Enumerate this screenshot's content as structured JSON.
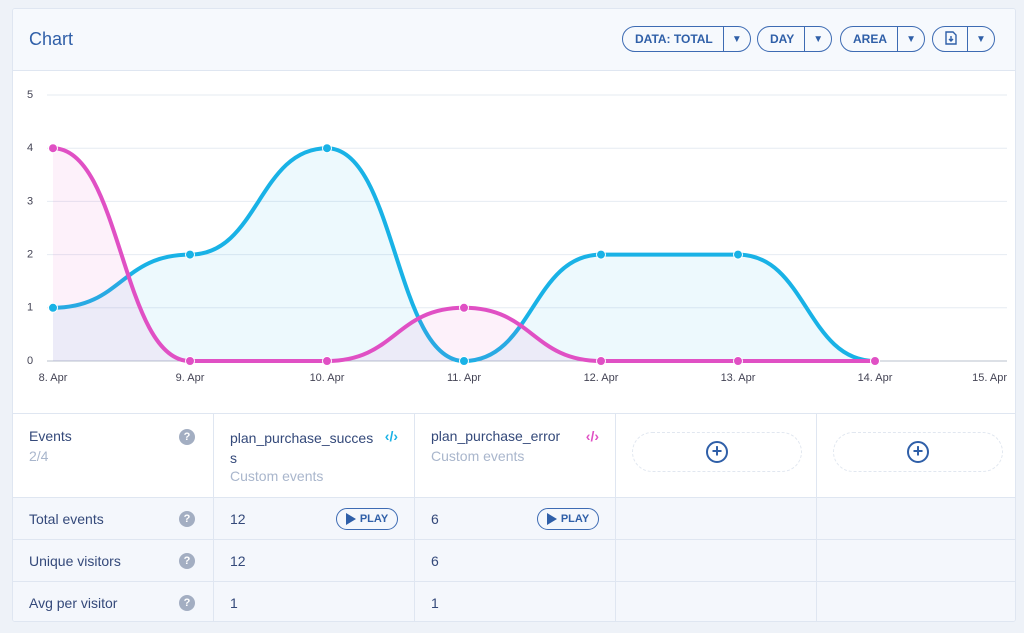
{
  "header": {
    "title": "Chart",
    "buttons": [
      "DATA: TOTAL",
      "DAY",
      "AREA"
    ]
  },
  "chart_data": {
    "type": "area",
    "categories": [
      "8. Apr",
      "9. Apr",
      "10. Apr",
      "11. Apr",
      "12. Apr",
      "13. Apr",
      "14. Apr",
      "15. Apr"
    ],
    "series": [
      {
        "name": "plan_purchase_success",
        "color": "#19b2e6",
        "values": [
          1,
          2,
          4,
          0,
          2,
          2,
          0,
          null
        ]
      },
      {
        "name": "plan_purchase_error",
        "color": "#e050c4",
        "values": [
          4,
          0,
          0,
          1,
          0,
          0,
          0,
          null
        ]
      }
    ],
    "ylim": [
      0,
      5
    ],
    "yticks": [
      0,
      1,
      2,
      3,
      4,
      5
    ],
    "grid": true
  },
  "table": {
    "header": {
      "label": "Events",
      "count": "2/4"
    },
    "columns": [
      {
        "name": "plan_purchase_success",
        "subtitle": "Custom events"
      },
      {
        "name": "plan_purchase_error",
        "subtitle": "Custom events"
      }
    ],
    "rows": [
      {
        "label": "Total events",
        "values": [
          12,
          6
        ],
        "buttons": [
          "PLAY",
          "PLAY"
        ]
      },
      {
        "label": "Unique visitors",
        "values": [
          12,
          6
        ]
      },
      {
        "label": "Avg per visitor",
        "values": [
          1,
          1
        ]
      }
    ]
  }
}
